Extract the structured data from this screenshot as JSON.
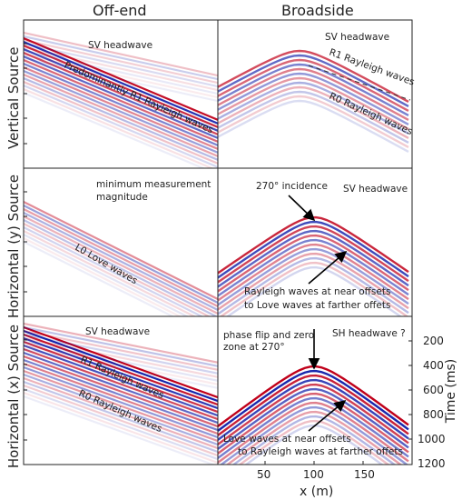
{
  "columns": [
    "Off-end",
    "Broadside"
  ],
  "rows": [
    "Vertical Source",
    "Horizontal (y) Source",
    "Horizontal (x) Source"
  ],
  "panels": {
    "r0c0": [
      "SV headwave",
      "Predominantly R1 Rayleigh waves"
    ],
    "r0c1": [
      "SV headwave",
      "R1 Rayleigh waves",
      "R0 Rayleigh waves"
    ],
    "r1c0": [
      "minimum measurement",
      "magnitude",
      "L0 Love waves"
    ],
    "r1c1": [
      "270° incidence",
      "SV headwave",
      "Rayleigh waves at near offsets",
      "to Love waves at farther offets"
    ],
    "r2c0": [
      "SV headwave",
      "R1 Rayleigh waves",
      "R0 Rayleigh waves"
    ],
    "r2c1": [
      "phase flip and zero",
      "zone at 270°",
      "SH headwave ?",
      "Love waves at near offsets",
      "to Rayleigh waves at farther offets"
    ]
  },
  "x_axis": {
    "label": "x (m)",
    "ticks": [
      "50",
      "100",
      "150"
    ]
  },
  "y_axis": {
    "label": "Time (ms)",
    "ticks": [
      "200",
      "400",
      "600",
      "800",
      "1000",
      "1200"
    ]
  },
  "colors": {
    "positive": "#c0001a",
    "negative": "#0a1aa8",
    "frame": "#222222"
  }
}
